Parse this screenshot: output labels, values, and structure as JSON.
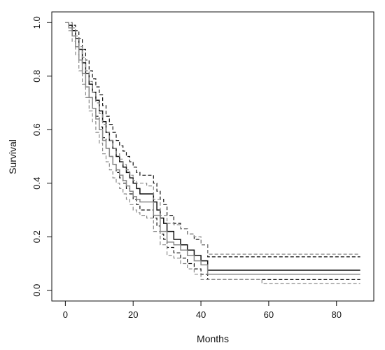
{
  "chart_data": {
    "type": "line",
    "title": "",
    "xlabel": "Months",
    "ylabel": "Survival",
    "xlim": [
      -4,
      91
    ],
    "ylim": [
      -0.04,
      1.04
    ],
    "x_ticks": [
      "0",
      "20",
      "40",
      "60",
      "80"
    ],
    "y_ticks": [
      "0.0",
      "0.2",
      "0.4",
      "0.6",
      "0.8",
      "1.0"
    ],
    "grid": false,
    "legend": "none",
    "series": [
      {
        "role": "estimate",
        "curve": "A",
        "style": "solid",
        "color": "#111111",
        "x": [
          0,
          1,
          2,
          3,
          4,
          5,
          6,
          7,
          8,
          9,
          10,
          11,
          12,
          13,
          14,
          15,
          16,
          17,
          18,
          19,
          20,
          21,
          22,
          26,
          27,
          28,
          29,
          30,
          32,
          34,
          36,
          38,
          40,
          42,
          58,
          87
        ],
        "y": [
          1.0,
          0.99,
          0.97,
          0.94,
          0.9,
          0.85,
          0.81,
          0.77,
          0.74,
          0.71,
          0.67,
          0.63,
          0.59,
          0.56,
          0.53,
          0.5,
          0.48,
          0.46,
          0.44,
          0.42,
          0.4,
          0.38,
          0.36,
          0.33,
          0.3,
          0.27,
          0.25,
          0.22,
          0.19,
          0.17,
          0.15,
          0.13,
          0.11,
          0.075,
          0.075,
          0.075
        ]
      },
      {
        "role": "upper_ci",
        "curve": "A",
        "style": "dashed",
        "color": "#111111",
        "x": [
          0,
          1,
          2,
          3,
          4,
          5,
          6,
          7,
          8,
          9,
          10,
          11,
          12,
          13,
          14,
          15,
          16,
          17,
          18,
          19,
          20,
          21,
          22,
          26,
          27,
          28,
          29,
          30,
          32,
          34,
          36,
          38,
          40,
          42,
          58,
          87
        ],
        "y": [
          1.0,
          1.0,
          0.99,
          0.97,
          0.94,
          0.9,
          0.86,
          0.82,
          0.79,
          0.76,
          0.73,
          0.69,
          0.65,
          0.62,
          0.59,
          0.56,
          0.54,
          0.52,
          0.5,
          0.48,
          0.46,
          0.44,
          0.43,
          0.4,
          0.37,
          0.34,
          0.32,
          0.28,
          0.25,
          0.23,
          0.21,
          0.19,
          0.17,
          0.125,
          0.125,
          0.125
        ]
      },
      {
        "role": "lower_ci",
        "curve": "A",
        "style": "dashed",
        "color": "#111111",
        "x": [
          0,
          1,
          2,
          3,
          4,
          5,
          6,
          7,
          8,
          9,
          10,
          11,
          12,
          13,
          14,
          15,
          16,
          17,
          18,
          19,
          20,
          21,
          22,
          26,
          27,
          28,
          29,
          30,
          32,
          34,
          36,
          38,
          40,
          42,
          58,
          87
        ],
        "y": [
          1.0,
          0.98,
          0.95,
          0.91,
          0.86,
          0.81,
          0.76,
          0.72,
          0.68,
          0.65,
          0.61,
          0.57,
          0.53,
          0.5,
          0.47,
          0.44,
          0.42,
          0.4,
          0.38,
          0.36,
          0.34,
          0.32,
          0.3,
          0.27,
          0.24,
          0.21,
          0.19,
          0.16,
          0.14,
          0.12,
          0.1,
          0.08,
          0.06,
          0.04,
          0.04,
          0.04
        ]
      },
      {
        "role": "estimate",
        "curve": "B",
        "style": "solid",
        "color": "#888888",
        "x": [
          0,
          1,
          2,
          3,
          4,
          5,
          6,
          7,
          8,
          9,
          10,
          11,
          12,
          13,
          14,
          15,
          16,
          17,
          18,
          19,
          20,
          21,
          22,
          24,
          26,
          28,
          30,
          32,
          34,
          36,
          38,
          40,
          42,
          58,
          87
        ],
        "y": [
          1.0,
          0.98,
          0.95,
          0.91,
          0.86,
          0.81,
          0.76,
          0.72,
          0.68,
          0.64,
          0.6,
          0.56,
          0.53,
          0.5,
          0.47,
          0.45,
          0.43,
          0.41,
          0.39,
          0.37,
          0.35,
          0.34,
          0.33,
          0.33,
          0.28,
          0.22,
          0.18,
          0.17,
          0.15,
          0.13,
          0.11,
          0.095,
          0.06,
          0.06,
          0.06
        ]
      },
      {
        "role": "upper_ci",
        "curve": "B",
        "style": "dashed",
        "color": "#888888",
        "x": [
          0,
          1,
          2,
          3,
          4,
          5,
          6,
          7,
          8,
          9,
          10,
          11,
          12,
          13,
          14,
          15,
          16,
          17,
          18,
          19,
          20,
          21,
          22,
          24,
          26,
          28,
          30,
          32,
          34,
          36,
          38,
          40,
          42,
          58,
          87
        ],
        "y": [
          1.0,
          1.0,
          0.98,
          0.95,
          0.91,
          0.87,
          0.82,
          0.78,
          0.74,
          0.7,
          0.66,
          0.62,
          0.59,
          0.56,
          0.53,
          0.51,
          0.49,
          0.47,
          0.45,
          0.43,
          0.41,
          0.4,
          0.4,
          0.39,
          0.34,
          0.28,
          0.25,
          0.245,
          0.23,
          0.21,
          0.2,
          0.17,
          0.135,
          0.135,
          0.135
        ]
      },
      {
        "role": "lower_ci",
        "curve": "B",
        "style": "dashed",
        "color": "#888888",
        "x": [
          0,
          1,
          2,
          3,
          4,
          5,
          6,
          7,
          8,
          9,
          10,
          11,
          12,
          13,
          14,
          15,
          16,
          17,
          18,
          19,
          20,
          21,
          22,
          24,
          26,
          28,
          30,
          32,
          34,
          36,
          38,
          40,
          42,
          58,
          87
        ],
        "y": [
          1.0,
          0.97,
          0.93,
          0.88,
          0.82,
          0.77,
          0.72,
          0.67,
          0.63,
          0.59,
          0.55,
          0.51,
          0.48,
          0.45,
          0.42,
          0.4,
          0.38,
          0.36,
          0.34,
          0.32,
          0.3,
          0.29,
          0.28,
          0.27,
          0.22,
          0.17,
          0.13,
          0.12,
          0.1,
          0.08,
          0.06,
          0.04,
          0.04,
          0.025,
          0.025
        ]
      }
    ]
  }
}
